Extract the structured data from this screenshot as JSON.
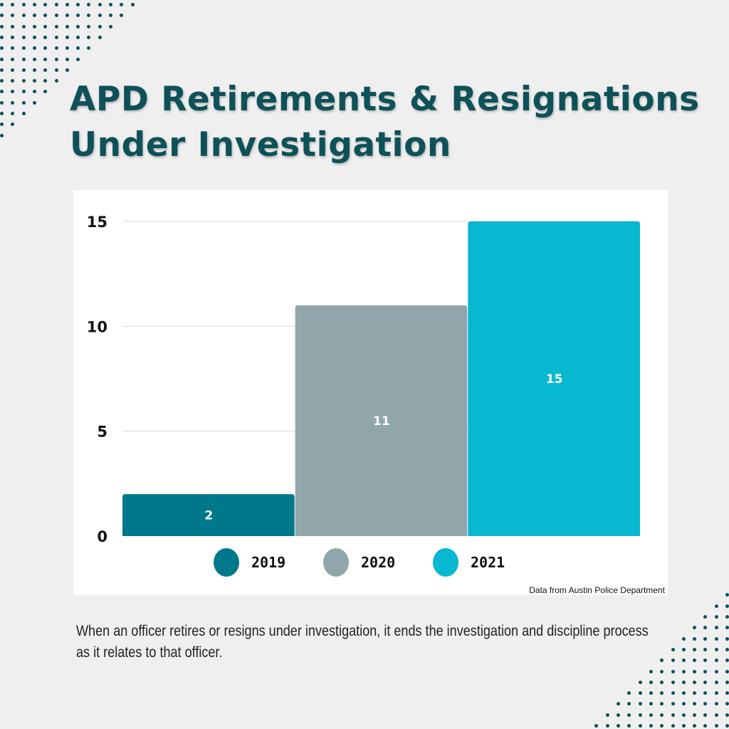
{
  "title": "APD Retirements & Resignations Under Investigation",
  "title_lines": [
    "APD Retirements & Resignations",
    "Under Investigation"
  ],
  "source": "Data from Austin Police Department",
  "caption": "When an officer retires or resigns under investigation, it ends the investigation and discipline process as it relates to that officer.",
  "colors": {
    "background": "#efefef",
    "title": "#0e5158",
    "dots": "#0e5158"
  },
  "chart_data": {
    "type": "bar",
    "categories": [
      "2019",
      "2020",
      "2021"
    ],
    "values": [
      2,
      11,
      15
    ],
    "colors": [
      "#00788c",
      "#90a6ab",
      "#08b7d0"
    ],
    "legend": [
      "2019",
      "2020",
      "2021"
    ],
    "legend_position": "bottom",
    "yticks": [
      0,
      5,
      10,
      15
    ],
    "ylim": [
      0,
      15
    ],
    "grid": true,
    "data_labels": true
  }
}
